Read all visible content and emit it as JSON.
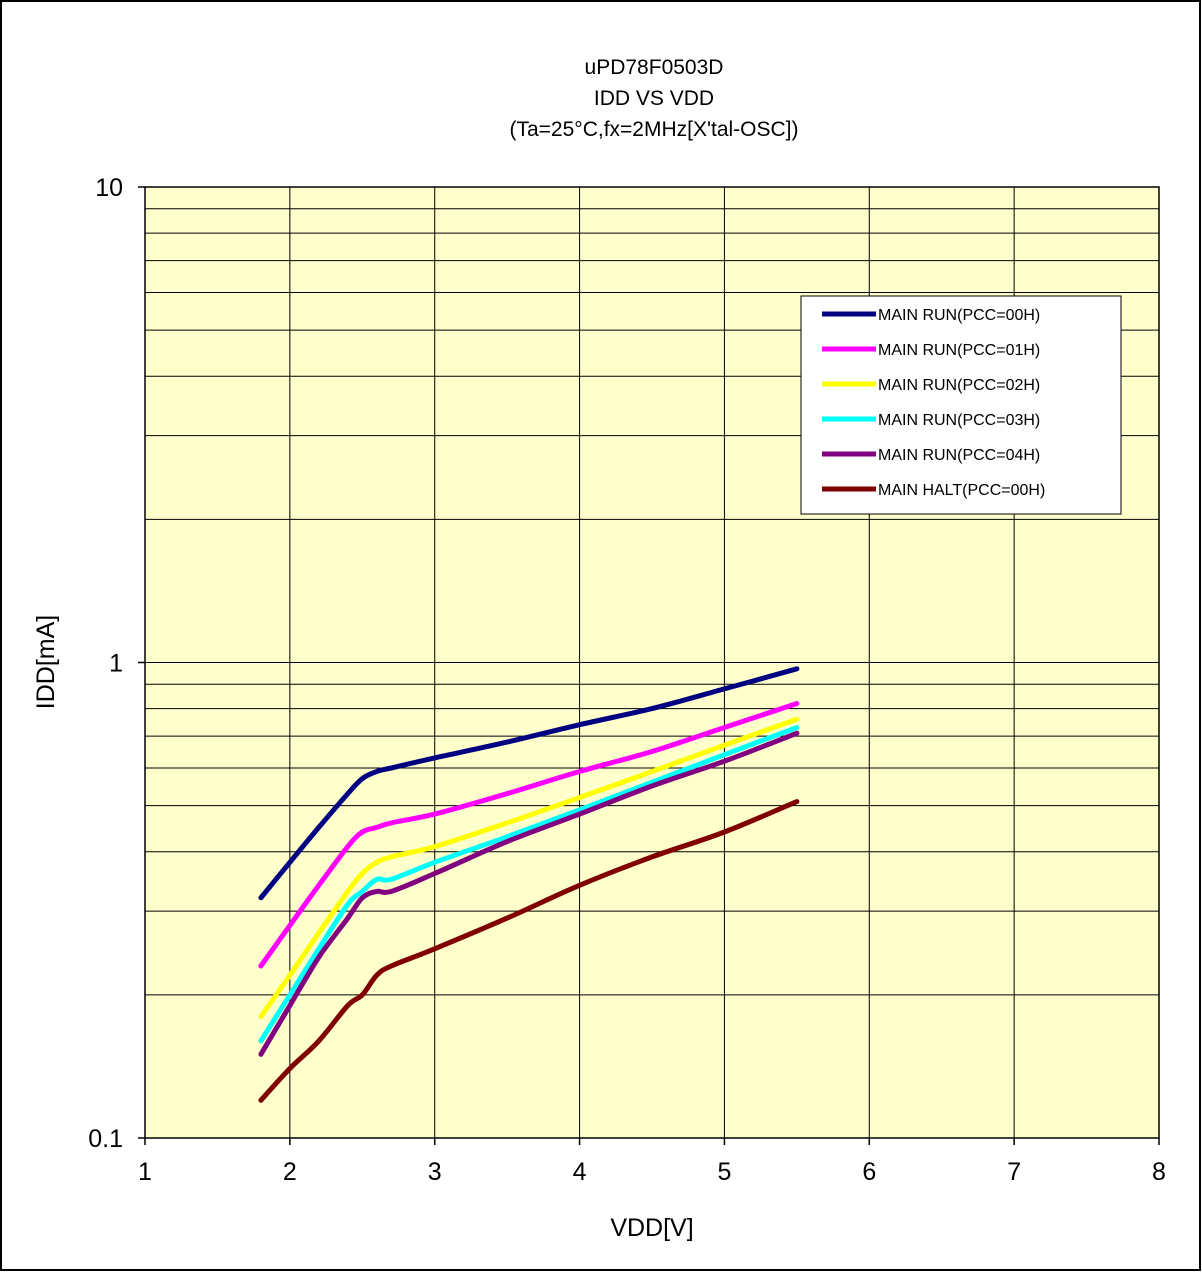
{
  "chart_data": {
    "type": "line",
    "title_lines": [
      "uPD78F0503D",
      "IDD VS VDD",
      "(Ta=25°C,fx=2MHz[X'tal-OSC])"
    ],
    "xlabel": "VDD[V]",
    "ylabel": "IDD[mA]",
    "xlim": [
      1,
      8
    ],
    "ylim": [
      0.1,
      10
    ],
    "y_scale": "log",
    "x_ticks": [
      "1",
      "2",
      "3",
      "4",
      "5",
      "6",
      "7",
      "8"
    ],
    "y_ticks": [
      "0.1",
      "1",
      "10"
    ],
    "grid": true,
    "plot_background": "#ffffcc",
    "legend_position": "upper-right",
    "x": [
      1.8,
      2.0,
      2.2,
      2.4,
      2.5,
      2.6,
      2.7,
      3.0,
      3.5,
      4.0,
      4.5,
      5.0,
      5.5
    ],
    "series": [
      {
        "name": "MAIN RUN(PCC=00H)",
        "color": "#000080",
        "values": [
          0.32,
          0.38,
          0.45,
          0.53,
          0.57,
          0.59,
          0.6,
          0.63,
          0.68,
          0.74,
          0.8,
          0.88,
          0.97
        ]
      },
      {
        "name": "MAIN RUN(PCC=01H)",
        "color": "#ff00ff",
        "values": [
          0.23,
          0.28,
          0.34,
          0.41,
          0.44,
          0.45,
          0.46,
          0.48,
          0.53,
          0.59,
          0.65,
          0.73,
          0.82
        ]
      },
      {
        "name": "MAIN RUN(PCC=02H)",
        "color": "#ffff00",
        "values": [
          0.18,
          0.22,
          0.27,
          0.33,
          0.36,
          0.38,
          0.39,
          0.41,
          0.46,
          0.52,
          0.59,
          0.67,
          0.76
        ]
      },
      {
        "name": "MAIN RUN(PCC=03H)",
        "color": "#00ffff",
        "values": [
          0.16,
          0.2,
          0.25,
          0.31,
          0.33,
          0.35,
          0.35,
          0.38,
          0.43,
          0.49,
          0.56,
          0.64,
          0.73
        ]
      },
      {
        "name": "MAIN RUN(PCC=04H)",
        "color": "#800080",
        "values": [
          0.15,
          0.19,
          0.24,
          0.29,
          0.32,
          0.33,
          0.33,
          0.36,
          0.42,
          0.48,
          0.55,
          0.62,
          0.71
        ]
      },
      {
        "name": "MAIN HALT(PCC=00H)",
        "color": "#800000",
        "values": [
          0.12,
          0.14,
          0.16,
          0.19,
          0.2,
          0.22,
          0.23,
          0.25,
          0.29,
          0.34,
          0.39,
          0.44,
          0.51
        ]
      }
    ]
  }
}
